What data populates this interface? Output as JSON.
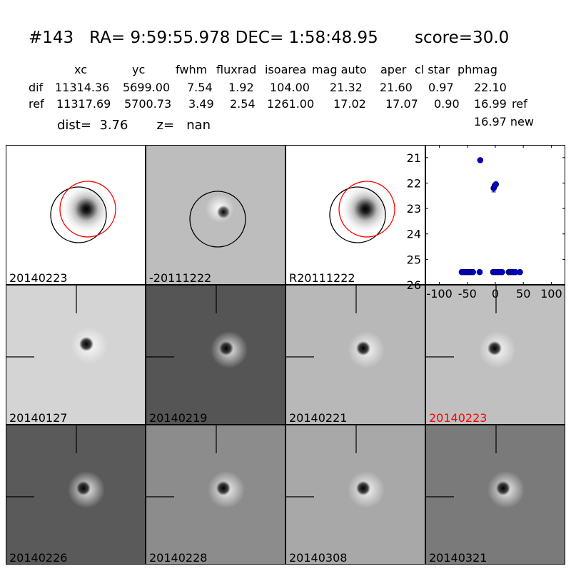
{
  "header": {
    "title_id": "#143",
    "title_radec": "RA= 9:59:55.978 DEC= 1:58:48.95",
    "title_score": "score=30.0"
  },
  "table": {
    "columns": [
      "xc",
      "yc",
      "fwhm",
      "fluxrad",
      "isoarea",
      "mag auto",
      "aper",
      "cl star",
      "phmag"
    ],
    "rows": [
      {
        "label": "dif",
        "values": [
          "11314.36",
          "5699.00",
          "7.54",
          "1.92",
          "104.00",
          "21.32",
          "21.60",
          "0.97",
          "22.10"
        ],
        "extra": ""
      },
      {
        "label": "ref",
        "values": [
          "11317.69",
          "5700.73",
          "3.49",
          "2.54",
          "1261.00",
          "17.02",
          "17.07",
          "0.90",
          "16.99"
        ],
        "extra": "ref"
      }
    ],
    "new_phmag": "16.97 new"
  },
  "dist_text": "dist=  3.76",
  "z_text": "z=   nan",
  "panels_top": [
    {
      "label": "20140223",
      "bg": "#ffffff"
    },
    {
      "label": "-20111222",
      "bg": "#bdbdbd"
    },
    {
      "label": "R20111222",
      "bg": "#ffffff"
    }
  ],
  "panels_grid": [
    {
      "label": "20140127",
      "bg": "#d4d4d4",
      "label_color": "#000000"
    },
    {
      "label": "20140219",
      "bg": "#555555",
      "label_color": "#000000"
    },
    {
      "label": "20140221",
      "bg": "#b8b8b8",
      "label_color": "#000000"
    },
    {
      "label": "20140223",
      "bg": "#c0c0c0",
      "label_color": "#ff0000"
    },
    {
      "label": "20140226",
      "bg": "#5a5a5a",
      "label_color": "#000000"
    },
    {
      "label": "20140228",
      "bg": "#8c8c8c",
      "label_color": "#000000"
    },
    {
      "label": "20140308",
      "bg": "#a8a8a8",
      "label_color": "#000000"
    },
    {
      "label": "20140321",
      "bg": "#7a7a7a",
      "label_color": "#000000"
    }
  ],
  "chart_data": {
    "type": "scatter",
    "xlim": [
      -125,
      125
    ],
    "ylim": [
      26,
      20.5
    ],
    "xticks": [
      "-100",
      "-50",
      "0",
      "50",
      "100"
    ],
    "xtick_values": [
      -100,
      -50,
      0,
      50,
      100
    ],
    "yticks": [
      "21",
      "22",
      "23",
      "24",
      "25",
      "26"
    ],
    "ytick_values": [
      21,
      22,
      23,
      24,
      25,
      26
    ],
    "marker_color": "#0000cc",
    "points": [
      {
        "x": -60,
        "y": 25.5
      },
      {
        "x": -56,
        "y": 25.5
      },
      {
        "x": -52,
        "y": 25.5
      },
      {
        "x": -48,
        "y": 25.5
      },
      {
        "x": -44,
        "y": 25.5
      },
      {
        "x": -40,
        "y": 25.5
      },
      {
        "x": -28,
        "y": 25.5
      },
      {
        "x": -27,
        "y": 21.1
      },
      {
        "x": -4,
        "y": 25.5
      },
      {
        "x": -3,
        "y": 22.2
      },
      {
        "x": -1,
        "y": 22.1
      },
      {
        "x": 0,
        "y": 25.5
      },
      {
        "x": 1,
        "y": 22.05
      },
      {
        "x": 4,
        "y": 25.5
      },
      {
        "x": 8,
        "y": 25.5
      },
      {
        "x": 12,
        "y": 25.5
      },
      {
        "x": 24,
        "y": 25.5
      },
      {
        "x": 28,
        "y": 25.5
      },
      {
        "x": 32,
        "y": 25.5
      },
      {
        "x": 36,
        "y": 25.5
      },
      {
        "x": 44,
        "y": 25.5
      }
    ]
  }
}
